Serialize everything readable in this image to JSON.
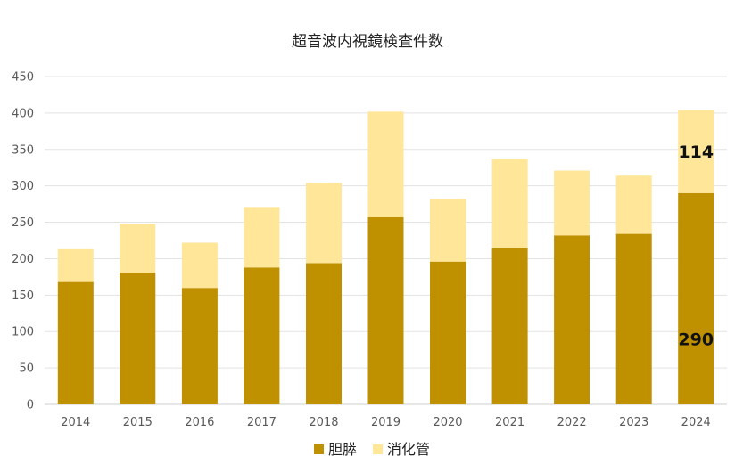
{
  "chart_data": {
    "type": "bar",
    "stacked": true,
    "title": "超音波内視鏡検査件数",
    "xlabel": "",
    "ylabel": "",
    "categories": [
      "2014",
      "2015",
      "2016",
      "2017",
      "2018",
      "2019",
      "2020",
      "2021",
      "2022",
      "2023",
      "2024"
    ],
    "series": [
      {
        "name": "胆膵",
        "color": "#bf9000",
        "values": [
          168,
          181,
          160,
          188,
          194,
          257,
          196,
          214,
          232,
          234,
          290
        ]
      },
      {
        "name": "消化管",
        "color": "#ffe699",
        "values": [
          45,
          67,
          62,
          83,
          110,
          145,
          86,
          123,
          89,
          80,
          114
        ]
      }
    ],
    "ylim": [
      0,
      450
    ],
    "yticks": [
      0,
      50,
      100,
      150,
      200,
      250,
      300,
      350,
      400,
      450
    ],
    "grid": true,
    "legend": "bottom",
    "data_labels": [
      {
        "category": "2024",
        "series": "胆膵",
        "text": "290"
      },
      {
        "category": "2024",
        "series": "消化管",
        "text": "114"
      }
    ]
  }
}
